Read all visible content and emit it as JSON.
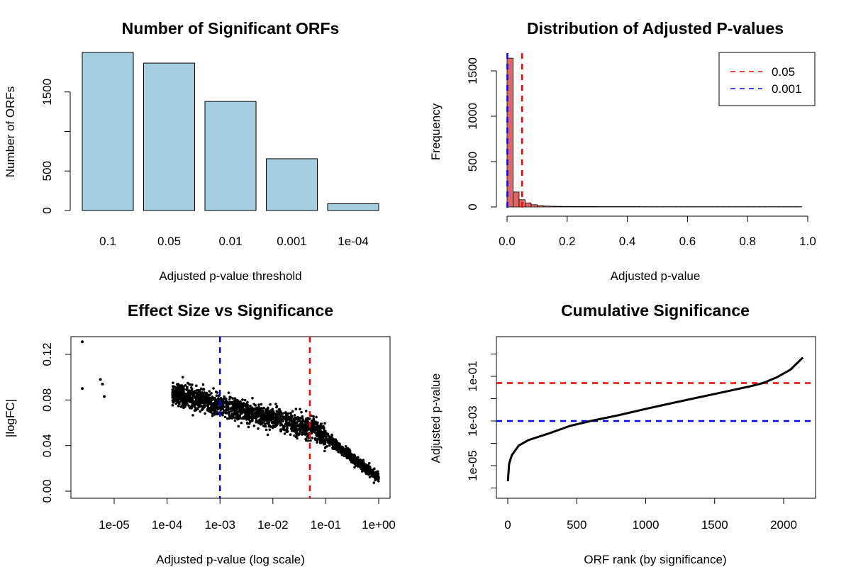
{
  "chart_data": [
    {
      "type": "bar",
      "title": "Number of Significant ORFs",
      "xlabel": "Adjusted p-value threshold",
      "ylabel": "Number of ORFs",
      "categories": [
        "0.1",
        "0.05",
        "0.01",
        "0.001",
        "1e-04"
      ],
      "values": [
        2000,
        1865,
        1380,
        655,
        85
      ],
      "yticks": [
        "0",
        "500",
        "",
        "1500"
      ],
      "ylim": [
        0,
        2000
      ],
      "colors": {
        "bar": "#a5cfe0"
      }
    },
    {
      "type": "bar",
      "subtype": "histogram",
      "title": "Distribution of Adjusted P-values",
      "xlabel": "Adjusted p-value",
      "ylabel": "Frequency",
      "bin_width": 0.02,
      "counts": [
        1640,
        165,
        80,
        45,
        25,
        15,
        10,
        8,
        7,
        6,
        6,
        5,
        5,
        5,
        5,
        4,
        4,
        4,
        4,
        4,
        4,
        4,
        3,
        3,
        3,
        3,
        3,
        3,
        3,
        3,
        3,
        3,
        3,
        3,
        3,
        3,
        3,
        3,
        3,
        3,
        3,
        3,
        3,
        3,
        3,
        3,
        3,
        3,
        3
      ],
      "xticks": [
        "0.0",
        "0.2",
        "0.4",
        "0.6",
        "0.8",
        "1.0"
      ],
      "yticks": [
        "0",
        "500",
        "1000",
        "1500"
      ],
      "xlim": [
        0,
        1
      ],
      "ylim": [
        0,
        1720
      ],
      "vlines": [
        {
          "x": 0.05,
          "color": "#ff0000",
          "label": "0.05"
        },
        {
          "x": 0.001,
          "color": "#0000ff",
          "label": "0.001"
        }
      ],
      "legend_position": "top-right",
      "colors": {
        "bar": "#e06666"
      }
    },
    {
      "type": "scatter",
      "title": "Effect Size vs Significance",
      "xlabel": "Adjusted p-value (log scale)",
      "ylabel": "|logFC|",
      "xscale": "log",
      "xticks": [
        "1e-05",
        "1e-04",
        "1e-03",
        "1e-02",
        "1e-01",
        "1e+00"
      ],
      "yticks": [
        "0.00",
        "0.04",
        "0.08",
        "0.12"
      ],
      "ylim": [
        0,
        0.13
      ],
      "vlines": [
        {
          "x": 0.001,
          "color": "#0000ff"
        },
        {
          "x": 0.05,
          "color": "#ff0000"
        }
      ],
      "sample_points": [
        {
          "x": 2.5e-06,
          "y": 0.131
        },
        {
          "x": 2.5e-06,
          "y": 0.09
        },
        {
          "x": 5.5e-06,
          "y": 0.098
        },
        {
          "x": 6e-06,
          "y": 0.094
        },
        {
          "x": 6.5e-06,
          "y": 0.083
        },
        {
          "x": 0.0001,
          "y": 0.085
        },
        {
          "x": 0.001,
          "y": 0.065
        },
        {
          "x": 0.01,
          "y": 0.05
        },
        {
          "x": 0.05,
          "y": 0.04
        },
        {
          "x": 0.1,
          "y": 0.03
        },
        {
          "x": 0.3,
          "y": 0.015
        },
        {
          "x": 1.0,
          "y": 0.001
        }
      ],
      "colors": {
        "point": "#000000"
      }
    },
    {
      "type": "line",
      "title": "Cumulative Significance",
      "xlabel": "ORF rank (by significance)",
      "ylabel": "Adjusted p-value",
      "yscale": "log",
      "xticks": [
        "0",
        "500",
        "1000",
        "1500",
        "2000"
      ],
      "yticks": [
        "1e-05",
        "1e-03",
        "1e-01"
      ],
      "xlim": [
        0,
        2150
      ],
      "hlines": [
        {
          "y": 0.05,
          "color": "#ff0000"
        },
        {
          "y": 0.001,
          "color": "#0000ff"
        }
      ],
      "x": [
        1,
        10,
        30,
        80,
        150,
        300,
        450,
        600,
        800,
        1000,
        1200,
        1400,
        1600,
        1750,
        1850,
        1950,
        2050,
        2140
      ],
      "y": [
        2e-06,
        1.2e-05,
        3e-05,
        8e-05,
        0.00014,
        0.00028,
        0.0006,
        0.001,
        0.0018,
        0.0035,
        0.0065,
        0.012,
        0.022,
        0.035,
        0.05,
        0.09,
        0.2,
        0.7
      ],
      "colors": {
        "line": "#000000"
      }
    }
  ]
}
